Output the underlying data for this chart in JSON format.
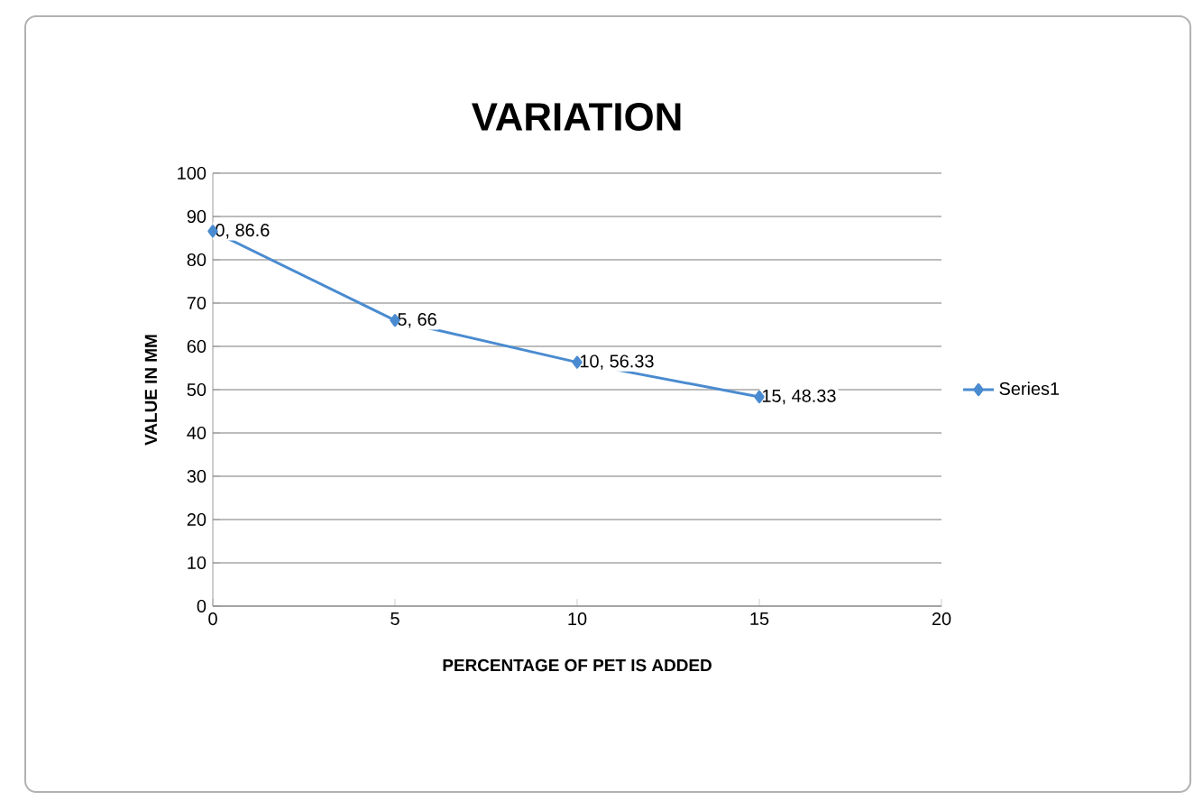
{
  "chart_data": {
    "type": "line",
    "title": "VARIATION",
    "xlabel": "PERCENTAGE OF PET IS ADDED",
    "ylabel": "VALUE IN MM",
    "x": [
      0,
      5,
      10,
      15
    ],
    "series": [
      {
        "name": "Series1",
        "color": "#4a8bd0",
        "values": [
          86.6,
          66,
          56.33,
          48.33
        ],
        "value_labels": [
          "0, 86.6",
          "5, 66",
          "10, 56.33",
          "15, 48.33"
        ]
      }
    ],
    "xlim": [
      0,
      20
    ],
    "ylim": [
      0,
      100
    ],
    "xticks": [
      0,
      5,
      10,
      15,
      20
    ],
    "yticks": [
      0,
      10,
      20,
      30,
      40,
      50,
      60,
      70,
      80,
      90,
      100
    ],
    "grid": "y",
    "legend": "right",
    "marker": "diamond",
    "line_style": "solid"
  }
}
